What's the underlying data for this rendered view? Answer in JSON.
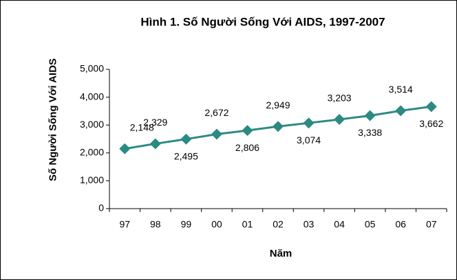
{
  "chart_data": {
    "type": "line",
    "title": "Hình 1. Số Người Sống Với AIDS, 1997-2007",
    "x_label": "Năm",
    "y_label": "Số Người Sống Với AIDS",
    "categories": [
      "97",
      "98",
      "99",
      "00",
      "01",
      "02",
      "03",
      "04",
      "05",
      "06",
      "07"
    ],
    "values": [
      2148,
      2329,
      2495,
      2672,
      2806,
      2949,
      3074,
      3203,
      3338,
      3514,
      3662
    ],
    "value_labels": [
      "2,148",
      "2,329",
      "2,495",
      "2,672",
      "2,806",
      "2,949",
      "3,074",
      "3,203",
      "3,338",
      "3,514",
      "3,662"
    ],
    "color": "#2b8a82",
    "ylim": [
      0,
      5000
    ],
    "yticks": [
      0,
      {
        "value": 1000,
        "label": "1,000"
      },
      {
        "value": 2000,
        "label": "2,000"
      },
      {
        "value": 3000,
        "label": "3,000"
      },
      {
        "value": 4000,
        "label": "4,000"
      },
      {
        "value": 5000,
        "label": "5,000"
      }
    ],
    "grid": false
  }
}
